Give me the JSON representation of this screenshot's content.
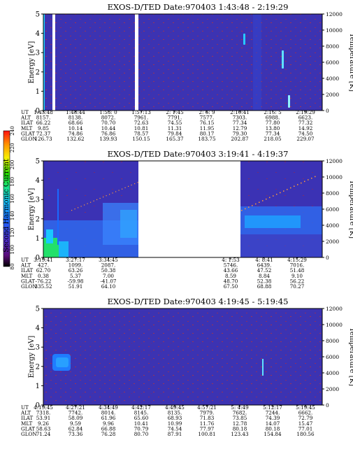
{
  "colors": {
    "background_plot": "#3a2fa6",
    "spectrogram_low": "#3f34b8",
    "spectrogram_mid": "#2f6cf0",
    "spectrogram_high": "#1fd0ff",
    "speck": "#b23a4a",
    "gap": "#ffffff"
  },
  "colorbar": {
    "label": "Second Harmonic Current",
    "ticks": [
      "80",
      "100",
      "120",
      "140",
      "160",
      "180",
      "200",
      "220",
      "240"
    ],
    "stops": [
      "#000000",
      "#5a0c78",
      "#4e2fd0",
      "#1a6aff",
      "#18c8ff",
      "#19e08a",
      "#22e000",
      "#f7f000",
      "#ff9400",
      "#ff1010"
    ]
  },
  "row_labels": [
    "UT",
    "ALT",
    "ILAT",
    "MLT",
    "GLAT",
    "GLON"
  ],
  "chart_data": [
    {
      "type": "heatmap",
      "title": "EXOS-D/TED   Date:970403   1:43:48 - 2:19:29",
      "ylabel": "Energy [eV]",
      "ylabel_right": "Temperature [K]",
      "ylim": [
        0,
        5
      ],
      "yticks": [
        "0",
        "1",
        "2",
        "3",
        "4",
        "5"
      ],
      "ylim_right": [
        0,
        12000
      ],
      "yticks_right": [
        "0",
        "2000",
        "4000",
        "6000",
        "8000",
        "10000",
        "12000"
      ],
      "x_ticks": [
        {
          "UT": "1:43:48",
          "ALT": "8157.",
          "ILAT": "66.22",
          "MLT": "9.85",
          "GLAT": "72.37",
          "GLON": "126.73"
        },
        {
          "UT": "1:48:44",
          "ALT": "8138.",
          "ILAT": "68.66",
          "MLT": "10.14",
          "GLAT": "74.86",
          "GLON": "132.62"
        },
        {
          "UT": "1:53: 0",
          "ALT": "8072.",
          "ILAT": "70.70",
          "MLT": "10.44",
          "GLAT": "76.86",
          "GLON": "139.93"
        },
        {
          "UT": "1:57:13",
          "ALT": "7961.",
          "ILAT": "72.63",
          "MLT": "10.81",
          "GLAT": "78.57",
          "GLON": "150.15"
        },
        {
          "UT": "2: 1:45",
          "ALT": "7791.",
          "ILAT": "74.55",
          "MLT": "11.31",
          "GLAT": "79.84",
          "GLON": "165.37"
        },
        {
          "UT": "2: 6: 9",
          "ALT": "7577.",
          "ILAT": "76.15",
          "MLT": "11.95",
          "GLAT": "80.17",
          "GLON": "183.75"
        },
        {
          "UT": "2:10:41",
          "ALT": "7303.",
          "ILAT": "77.34",
          "MLT": "12.79",
          "GLAT": "79.30",
          "GLON": "202.87"
        },
        {
          "UT": "2:15: 5",
          "ALT": "6988.",
          "ILAT": "77.80",
          "MLT": "13.80",
          "GLAT": "77.34",
          "GLON": "218.05"
        },
        {
          "UT": "2:19:29",
          "ALT": "6623.",
          "ILAT": "77.32",
          "MLT": "14.92",
          "GLAT": "74.50",
          "GLON": "229.07"
        }
      ]
    },
    {
      "type": "heatmap",
      "title": "EXOS-D/TED   Date:970403   3:19:41 - 4:19:37",
      "ylabel": "Energy [eV]",
      "ylabel_right": "Temperature [K]",
      "ylim": [
        0,
        5
      ],
      "yticks": [
        "0",
        "1",
        "2",
        "3",
        "4",
        "5"
      ],
      "ylim_right": [
        0,
        12000
      ],
      "yticks_right": [
        "0",
        "2000",
        "4000",
        "6000",
        "8000",
        "10000",
        "12000"
      ],
      "x_ticks": [
        {
          "UT": "3:19:41",
          "ALT": "427.",
          "ILAT": "62.70",
          "MLT": "0.38",
          "GLAT": "-76.22",
          "GLON": "335.52"
        },
        {
          "UT": "3:27:17",
          "ALT": "1099.",
          "ILAT": "63.26",
          "MLT": "5.37",
          "GLAT": "-59.98",
          "GLON": "51.91"
        },
        {
          "UT": "3:34:45",
          "ALT": "2087.",
          "ILAT": "50.38",
          "MLT": "7.00",
          "GLAT": "-41.07",
          "GLON": "64.10"
        },
        {
          "UT": "4: 1:53",
          "ALT": "5746.",
          "ILAT": "43.66",
          "MLT": "8.59",
          "GLAT": "48.70",
          "GLON": "67.50"
        },
        {
          "UT": "4: 8:41",
          "ALT": "6439.",
          "ILAT": "47.52",
          "MLT": "8.84",
          "GLAT": "52.38",
          "GLON": "68.88"
        },
        {
          "UT": "4:15:29",
          "ALT": "7016.",
          "ILAT": "51.48",
          "MLT": "9.10",
          "GLAT": "56.22",
          "GLON": "70.27"
        }
      ]
    },
    {
      "type": "heatmap",
      "title": "EXOS-D/TED   Date:970403   4:19:45 - 5:19:45",
      "ylabel": "Energy [eV]",
      "ylabel_right": "Temperature [K]",
      "ylim": [
        0,
        5
      ],
      "yticks": [
        "0",
        "1",
        "2",
        "3",
        "4",
        "5"
      ],
      "ylim_right": [
        0,
        12000
      ],
      "yticks_right": [
        "0",
        "2000",
        "4000",
        "6000",
        "8000",
        "10000",
        "12000"
      ],
      "x_ticks": [
        {
          "UT": "4:19:45",
          "ALT": "7318.",
          "ILAT": "53.91",
          "MLT": "9.26",
          "GLAT": "58.63",
          "GLON": "71.24"
        },
        {
          "UT": "4:27:21",
          "ALT": "7742.",
          "ILAT": "58.09",
          "MLT": "9.59",
          "GLAT": "62.84",
          "GLON": "73.36"
        },
        {
          "UT": "4:34:49",
          "ALT": "8014.",
          "ILAT": "61.96",
          "MLT": "9.96",
          "GLAT": "66.88",
          "GLON": "76.28"
        },
        {
          "UT": "4:42:17",
          "ALT": "8145.",
          "ILAT": "65.60",
          "MLT": "10.41",
          "GLAT": "70.79",
          "GLON": "80.70"
        },
        {
          "UT": "4:49:45",
          "ALT": "8135.",
          "ILAT": "68.93",
          "MLT": "10.99",
          "GLAT": "74.54",
          "GLON": "87.91"
        },
        {
          "UT": "4:57:21",
          "ALT": "7979.",
          "ILAT": "71.83",
          "MLT": "11.76",
          "GLAT": "77.97",
          "GLON": "100.81"
        },
        {
          "UT": "5: 4:49",
          "ALT": "7682.",
          "ILAT": "73.85",
          "MLT": "12.78",
          "GLAT": "80.18",
          "GLON": "123.43"
        },
        {
          "UT": "5:12:17",
          "ALT": "7244.",
          "ILAT": "74.39",
          "MLT": "14.07",
          "GLAT": "80.18",
          "GLON": "154.84"
        },
        {
          "UT": "5:19:45",
          "ALT": "6662.",
          "ILAT": "72.79",
          "MLT": "15.47",
          "GLAT": "77.01",
          "GLON": "180.56"
        }
      ]
    }
  ]
}
